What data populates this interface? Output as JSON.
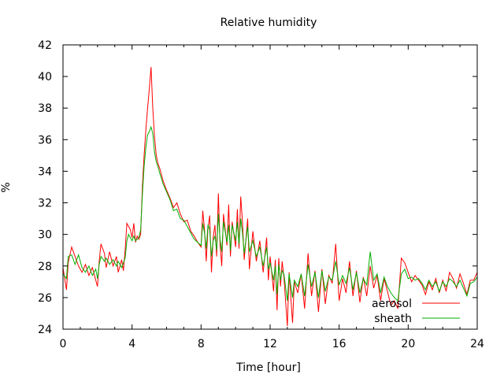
{
  "chart_data": {
    "type": "line",
    "title": "Relative humidity",
    "xlabel": "Time [hour]",
    "ylabel": "%",
    "xlim": [
      0,
      24
    ],
    "ylim": [
      24,
      42
    ],
    "xticks": [
      0,
      4,
      8,
      12,
      16,
      20,
      24
    ],
    "yticks": [
      24,
      26,
      28,
      30,
      32,
      34,
      36,
      38,
      40,
      42
    ],
    "grid": false,
    "legend_position": "bottom-right",
    "series": [
      {
        "name": "aerosol",
        "color": "#ff0000",
        "points": [
          [
            0.0,
            27.9
          ],
          [
            0.2,
            26.5
          ],
          [
            0.3,
            28.2
          ],
          [
            0.5,
            29.2
          ],
          [
            0.7,
            28.6
          ],
          [
            0.9,
            28.0
          ],
          [
            1.1,
            27.6
          ],
          [
            1.3,
            28.1
          ],
          [
            1.5,
            27.4
          ],
          [
            1.7,
            27.9
          ],
          [
            1.9,
            27.1
          ],
          [
            2.0,
            26.7
          ],
          [
            2.1,
            28.3
          ],
          [
            2.2,
            29.4
          ],
          [
            2.4,
            28.8
          ],
          [
            2.5,
            27.9
          ],
          [
            2.7,
            28.9
          ],
          [
            2.9,
            28.0
          ],
          [
            3.1,
            28.6
          ],
          [
            3.2,
            27.6
          ],
          [
            3.4,
            28.4
          ],
          [
            3.5,
            27.7
          ],
          [
            3.6,
            29.0
          ],
          [
            3.7,
            30.7
          ],
          [
            3.8,
            30.5
          ],
          [
            3.9,
            30.3
          ],
          [
            4.0,
            29.8
          ],
          [
            4.1,
            30.7
          ],
          [
            4.2,
            29.5
          ],
          [
            4.3,
            29.9
          ],
          [
            4.4,
            29.7
          ],
          [
            4.5,
            30.0
          ],
          [
            4.6,
            33.0
          ],
          [
            4.7,
            35.0
          ],
          [
            4.8,
            36.6
          ],
          [
            4.9,
            38.0
          ],
          [
            5.0,
            39.2
          ],
          [
            5.1,
            40.6
          ],
          [
            5.2,
            38.0
          ],
          [
            5.3,
            36.2
          ],
          [
            5.4,
            35.0
          ],
          [
            5.5,
            34.5
          ],
          [
            5.6,
            34.2
          ],
          [
            5.8,
            33.4
          ],
          [
            6.0,
            32.8
          ],
          [
            6.2,
            32.3
          ],
          [
            6.4,
            31.7
          ],
          [
            6.6,
            32.0
          ],
          [
            6.8,
            31.3
          ],
          [
            7.0,
            30.8
          ],
          [
            7.2,
            30.9
          ],
          [
            7.4,
            30.2
          ],
          [
            7.6,
            29.9
          ],
          [
            7.8,
            29.5
          ],
          [
            8.0,
            29.2
          ],
          [
            8.1,
            31.5
          ],
          [
            8.2,
            30.3
          ],
          [
            8.3,
            28.3
          ],
          [
            8.4,
            30.4
          ],
          [
            8.5,
            31.2
          ],
          [
            8.6,
            27.6
          ],
          [
            8.7,
            29.8
          ],
          [
            8.8,
            30.6
          ],
          [
            8.9,
            28.6
          ],
          [
            9.0,
            32.6
          ],
          [
            9.1,
            29.4
          ],
          [
            9.2,
            28.0
          ],
          [
            9.3,
            31.3
          ],
          [
            9.5,
            29.3
          ],
          [
            9.6,
            31.9
          ],
          [
            9.7,
            28.6
          ],
          [
            9.8,
            30.8
          ],
          [
            10.0,
            29.2
          ],
          [
            10.1,
            31.6
          ],
          [
            10.2,
            29.1
          ],
          [
            10.3,
            32.4
          ],
          [
            10.4,
            30.8
          ],
          [
            10.5,
            28.4
          ],
          [
            10.7,
            31.0
          ],
          [
            10.8,
            27.8
          ],
          [
            11.0,
            30.2
          ],
          [
            11.2,
            28.3
          ],
          [
            11.4,
            29.6
          ],
          [
            11.6,
            27.6
          ],
          [
            11.8,
            29.8
          ],
          [
            11.9,
            27.1
          ],
          [
            12.0,
            28.6
          ],
          [
            12.2,
            26.4
          ],
          [
            12.3,
            28.4
          ],
          [
            12.4,
            25.2
          ],
          [
            12.5,
            28.5
          ],
          [
            12.6,
            26.7
          ],
          [
            12.7,
            28.3
          ],
          [
            12.8,
            27.3
          ],
          [
            13.0,
            24.2
          ],
          [
            13.1,
            27.6
          ],
          [
            13.3,
            24.4
          ],
          [
            13.4,
            27.0
          ],
          [
            13.6,
            26.3
          ],
          [
            13.8,
            27.5
          ],
          [
            14.0,
            25.3
          ],
          [
            14.2,
            28.8
          ],
          [
            14.4,
            26.1
          ],
          [
            14.6,
            27.7
          ],
          [
            14.8,
            25.1
          ],
          [
            15.0,
            27.8
          ],
          [
            15.2,
            25.6
          ],
          [
            15.4,
            27.4
          ],
          [
            15.6,
            26.9
          ],
          [
            15.8,
            29.4
          ],
          [
            16.0,
            25.8
          ],
          [
            16.2,
            27.2
          ],
          [
            16.4,
            26.3
          ],
          [
            16.6,
            28.3
          ],
          [
            16.8,
            26.1
          ],
          [
            17.0,
            27.7
          ],
          [
            17.2,
            25.7
          ],
          [
            17.4,
            27.3
          ],
          [
            17.6,
            26.1
          ],
          [
            17.8,
            28.0
          ],
          [
            18.0,
            26.6
          ],
          [
            18.2,
            27.4
          ],
          [
            18.4,
            25.8
          ],
          [
            18.6,
            27.2
          ],
          [
            18.8,
            26.4
          ],
          [
            19.0,
            25.5
          ],
          [
            19.2,
            25.8
          ],
          [
            19.4,
            25.3
          ],
          [
            19.6,
            28.5
          ],
          [
            19.8,
            28.2
          ],
          [
            20.0,
            27.6
          ],
          [
            20.2,
            27.0
          ],
          [
            20.4,
            27.4
          ],
          [
            20.6,
            27.1
          ],
          [
            20.8,
            26.8
          ],
          [
            21.0,
            26.2
          ],
          [
            21.2,
            27.0
          ],
          [
            21.4,
            26.5
          ],
          [
            21.6,
            27.2
          ],
          [
            21.8,
            26.3
          ],
          [
            22.0,
            27.1
          ],
          [
            22.2,
            26.4
          ],
          [
            22.4,
            27.6
          ],
          [
            22.6,
            27.2
          ],
          [
            22.8,
            26.6
          ],
          [
            23.0,
            27.5
          ],
          [
            23.2,
            26.9
          ],
          [
            23.4,
            26.2
          ],
          [
            23.6,
            27.1
          ],
          [
            23.8,
            27.1
          ],
          [
            24.0,
            27.6
          ]
        ]
      },
      {
        "name": "sheath",
        "color": "#00b000",
        "points": [
          [
            0.0,
            27.5
          ],
          [
            0.2,
            27.2
          ],
          [
            0.3,
            28.6
          ],
          [
            0.5,
            28.7
          ],
          [
            0.7,
            28.1
          ],
          [
            0.9,
            28.7
          ],
          [
            1.1,
            27.9
          ],
          [
            1.3,
            27.6
          ],
          [
            1.5,
            28.0
          ],
          [
            1.7,
            27.4
          ],
          [
            1.9,
            27.8
          ],
          [
            2.0,
            27.2
          ],
          [
            2.1,
            28.1
          ],
          [
            2.2,
            28.6
          ],
          [
            2.4,
            28.3
          ],
          [
            2.5,
            28.5
          ],
          [
            2.7,
            28.1
          ],
          [
            2.9,
            28.4
          ],
          [
            3.1,
            28.0
          ],
          [
            3.2,
            28.3
          ],
          [
            3.4,
            27.9
          ],
          [
            3.5,
            28.2
          ],
          [
            3.6,
            28.5
          ],
          [
            3.7,
            29.6
          ],
          [
            3.8,
            30.0
          ],
          [
            3.9,
            29.8
          ],
          [
            4.0,
            29.6
          ],
          [
            4.1,
            29.9
          ],
          [
            4.2,
            29.6
          ],
          [
            4.3,
            29.7
          ],
          [
            4.4,
            29.8
          ],
          [
            4.5,
            30.3
          ],
          [
            4.6,
            32.5
          ],
          [
            4.7,
            34.3
          ],
          [
            4.8,
            35.5
          ],
          [
            4.9,
            36.3
          ],
          [
            5.0,
            36.5
          ],
          [
            5.1,
            36.8
          ],
          [
            5.2,
            36.4
          ],
          [
            5.3,
            35.2
          ],
          [
            5.4,
            34.6
          ],
          [
            5.5,
            34.3
          ],
          [
            5.6,
            33.9
          ],
          [
            5.8,
            33.2
          ],
          [
            6.0,
            32.7
          ],
          [
            6.2,
            32.2
          ],
          [
            6.4,
            31.5
          ],
          [
            6.6,
            31.6
          ],
          [
            6.8,
            31.0
          ],
          [
            7.0,
            30.9
          ],
          [
            7.2,
            30.5
          ],
          [
            7.4,
            30.1
          ],
          [
            7.6,
            29.7
          ],
          [
            7.8,
            29.5
          ],
          [
            8.0,
            29.3
          ],
          [
            8.1,
            30.7
          ],
          [
            8.2,
            30.1
          ],
          [
            8.3,
            29.1
          ],
          [
            8.4,
            30.6
          ],
          [
            8.5,
            30.3
          ],
          [
            8.6,
            28.6
          ],
          [
            8.7,
            29.6
          ],
          [
            8.8,
            29.9
          ],
          [
            8.9,
            29.0
          ],
          [
            9.0,
            31.3
          ],
          [
            9.1,
            29.7
          ],
          [
            9.2,
            28.9
          ],
          [
            9.3,
            30.8
          ],
          [
            9.5,
            29.5
          ],
          [
            9.6,
            30.6
          ],
          [
            9.7,
            29.0
          ],
          [
            9.8,
            30.6
          ],
          [
            10.0,
            29.6
          ],
          [
            10.1,
            30.8
          ],
          [
            10.2,
            29.4
          ],
          [
            10.3,
            31.0
          ],
          [
            10.4,
            30.1
          ],
          [
            10.5,
            28.8
          ],
          [
            10.7,
            30.5
          ],
          [
            10.8,
            28.9
          ],
          [
            11.0,
            29.6
          ],
          [
            11.2,
            28.6
          ],
          [
            11.4,
            29.2
          ],
          [
            11.6,
            28.0
          ],
          [
            11.8,
            29.2
          ],
          [
            11.9,
            27.8
          ],
          [
            12.0,
            28.2
          ],
          [
            12.2,
            27.1
          ],
          [
            12.3,
            28.0
          ],
          [
            12.4,
            26.2
          ],
          [
            12.5,
            28.1
          ],
          [
            12.6,
            27.1
          ],
          [
            12.7,
            27.7
          ],
          [
            12.8,
            27.5
          ],
          [
            13.0,
            25.8
          ],
          [
            13.1,
            27.5
          ],
          [
            13.3,
            26.0
          ],
          [
            13.4,
            27.1
          ],
          [
            13.6,
            26.7
          ],
          [
            13.8,
            27.5
          ],
          [
            14.0,
            26.1
          ],
          [
            14.2,
            28.1
          ],
          [
            14.4,
            26.7
          ],
          [
            14.6,
            27.6
          ],
          [
            14.8,
            26.0
          ],
          [
            15.0,
            27.7
          ],
          [
            15.2,
            26.4
          ],
          [
            15.4,
            27.3
          ],
          [
            15.6,
            27.1
          ],
          [
            15.8,
            28.3
          ],
          [
            16.0,
            26.8
          ],
          [
            16.2,
            27.4
          ],
          [
            16.4,
            26.9
          ],
          [
            16.6,
            27.9
          ],
          [
            16.8,
            26.5
          ],
          [
            17.0,
            27.6
          ],
          [
            17.2,
            26.3
          ],
          [
            17.4,
            27.2
          ],
          [
            17.6,
            26.8
          ],
          [
            17.8,
            28.9
          ],
          [
            18.0,
            27.1
          ],
          [
            18.2,
            27.5
          ],
          [
            18.4,
            26.3
          ],
          [
            18.6,
            27.3
          ],
          [
            18.8,
            26.7
          ],
          [
            19.0,
            26.3
          ],
          [
            19.2,
            26.0
          ],
          [
            19.4,
            25.8
          ],
          [
            19.6,
            27.5
          ],
          [
            19.8,
            27.8
          ],
          [
            20.0,
            27.2
          ],
          [
            20.2,
            27.3
          ],
          [
            20.4,
            27.1
          ],
          [
            20.6,
            27.2
          ],
          [
            20.8,
            26.9
          ],
          [
            21.0,
            26.5
          ],
          [
            21.2,
            27.1
          ],
          [
            21.4,
            26.7
          ],
          [
            21.6,
            27.0
          ],
          [
            21.8,
            26.4
          ],
          [
            22.0,
            27.0
          ],
          [
            22.2,
            26.7
          ],
          [
            22.4,
            27.2
          ],
          [
            22.6,
            27.0
          ],
          [
            22.8,
            26.7
          ],
          [
            23.0,
            27.1
          ],
          [
            23.2,
            26.6
          ],
          [
            23.4,
            26.1
          ],
          [
            23.6,
            26.9
          ],
          [
            23.8,
            27.0
          ],
          [
            24.0,
            27.3
          ]
        ]
      }
    ]
  }
}
